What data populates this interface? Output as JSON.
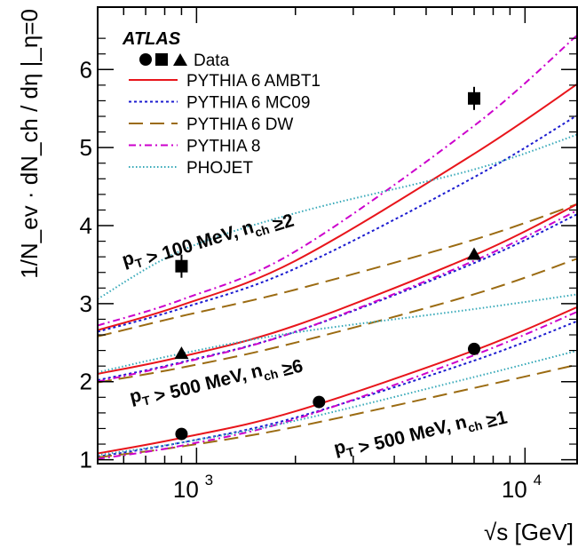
{
  "chart_data": {
    "type": "line",
    "title": "",
    "xlabel": "√s [GeV]",
    "ylabel": "1/N_ev · dN_ch / dη |_η=0",
    "xscale": "log",
    "xlim": [
      500,
      14500
    ],
    "ylim": [
      0.95,
      6.8
    ],
    "x_ticks": [
      1000,
      10000
    ],
    "x_tick_labels": [
      "10",
      "10"
    ],
    "x_tick_exponents": [
      "3",
      "4"
    ],
    "y_ticks": [
      1,
      2,
      3,
      4,
      5,
      6
    ],
    "y_tick_labels": [
      "1",
      "2",
      "3",
      "4",
      "5",
      "6"
    ],
    "grid": false,
    "legend_position": "top-left",
    "experiment_label": "ATLAS",
    "legend": {
      "data_label": "Data",
      "entries": [
        {
          "name": "PYTHIA 6 AMBT1",
          "color": "#e8151b",
          "dash": "solid"
        },
        {
          "name": "PYTHIA 6 MC09",
          "color": "#1c1cd0",
          "dash": "dotted"
        },
        {
          "name": "PYTHIA 6 DW",
          "color": "#9b6b12",
          "dash": "longdash"
        },
        {
          "name": "PYTHIA 8",
          "color": "#cc00cc",
          "dash": "dashdot"
        },
        {
          "name": "PHOJET",
          "color": "#35a8b8",
          "dash": "finedot"
        }
      ]
    },
    "annotations": {
      "high": {
        "pre": "p",
        "sub1": "T",
        "mid": " > 100 MeV, n",
        "sub2": "ch",
        "rel": "≥",
        "num": "2"
      },
      "mid": {
        "pre": "p",
        "sub1": "T",
        "mid": " > 500 MeV, n",
        "sub2": "ch",
        "rel": "≥",
        "num": "6"
      },
      "low": {
        "pre": "p",
        "sub1": "T",
        "mid": " > 500 MeV, n",
        "sub2": "ch",
        "rel": "≥",
        "num": "1"
      }
    },
    "data_points": [
      {
        "group": "pT>500MeV, nch>=1",
        "marker": "circle",
        "x": [
          900,
          2360,
          7000
        ],
        "y": [
          1.33,
          1.74,
          2.42
        ]
      },
      {
        "group": "pT>500MeV, nch>=6",
        "marker": "triangle",
        "x": [
          900,
          7000
        ],
        "y": [
          2.36,
          3.63
        ]
      },
      {
        "group": "pT>100MeV, nch>=2",
        "marker": "square",
        "x": [
          900,
          7000
        ],
        "y": [
          3.48,
          5.63
        ]
      }
    ],
    "series": [
      {
        "name": "PYTHIA 6 AMBT1",
        "group": "pT>100MeV, nch>=2",
        "x": [
          500,
          900,
          2000,
          7000,
          14500
        ],
        "y": [
          2.66,
          2.98,
          3.55,
          4.92,
          5.82
        ]
      },
      {
        "name": "PYTHIA 6 MC09",
        "group": "pT>100MeV, nch>=2",
        "x": [
          500,
          900,
          2000,
          7000,
          14500
        ],
        "y": [
          2.64,
          2.94,
          3.45,
          4.62,
          5.42
        ]
      },
      {
        "name": "PYTHIA 6 DW",
        "group": "pT>100MeV, nch>=2",
        "x": [
          500,
          900,
          2000,
          7000,
          14500
        ],
        "y": [
          2.58,
          2.84,
          3.18,
          3.82,
          4.28
        ]
      },
      {
        "name": "PYTHIA 8",
        "group": "pT>100MeV, nch>=2",
        "x": [
          500,
          900,
          2000,
          7000,
          14500
        ],
        "y": [
          2.72,
          3.05,
          3.67,
          5.28,
          6.45
        ]
      },
      {
        "name": "PHOJET",
        "group": "pT>100MeV, nch>=2",
        "x": [
          500,
          900,
          2000,
          7000,
          14500
        ],
        "y": [
          3.06,
          3.68,
          4.16,
          4.72,
          5.17
        ]
      },
      {
        "name": "PYTHIA 6 AMBT1",
        "group": "pT>500MeV, nch>=6",
        "x": [
          500,
          900,
          2000,
          7000,
          14500
        ],
        "y": [
          2.1,
          2.32,
          2.72,
          3.62,
          4.28
        ]
      },
      {
        "name": "PYTHIA 6 MC09",
        "group": "pT>500MeV, nch>=6",
        "x": [
          500,
          900,
          2000,
          7000,
          14500
        ],
        "y": [
          2.02,
          2.25,
          2.64,
          3.52,
          4.15
        ]
      },
      {
        "name": "PYTHIA 6 DW",
        "group": "pT>500MeV, nch>=6",
        "x": [
          500,
          900,
          2000,
          7000,
          14500
        ],
        "y": [
          1.99,
          2.18,
          2.5,
          3.12,
          3.58
        ]
      },
      {
        "name": "PYTHIA 8",
        "group": "pT>500MeV, nch>=6",
        "x": [
          500,
          900,
          2000,
          7000,
          14500
        ],
        "y": [
          2.0,
          2.24,
          2.64,
          3.55,
          4.2
        ]
      },
      {
        "name": "PHOJET",
        "group": "pT>500MeV, nch>=6",
        "x": [
          500,
          900,
          2000,
          7000,
          14500
        ],
        "y": [
          2.12,
          2.36,
          2.63,
          2.93,
          3.12
        ]
      },
      {
        "name": "PYTHIA 6 AMBT1",
        "group": "pT>500MeV, nch>=1",
        "x": [
          500,
          900,
          2000,
          7000,
          14500
        ],
        "y": [
          1.08,
          1.28,
          1.62,
          2.4,
          2.96
        ]
      },
      {
        "name": "PYTHIA 6 MC09",
        "group": "pT>500MeV, nch>=1",
        "x": [
          500,
          900,
          2000,
          7000,
          14500
        ],
        "y": [
          1.04,
          1.22,
          1.54,
          2.27,
          2.78
        ]
      },
      {
        "name": "PYTHIA 6 DW",
        "group": "pT>500MeV, nch>=1",
        "x": [
          500,
          900,
          2000,
          7000,
          14500
        ],
        "y": [
          1.03,
          1.17,
          1.42,
          1.92,
          2.22
        ]
      },
      {
        "name": "PYTHIA 8",
        "group": "pT>500MeV, nch>=1",
        "x": [
          500,
          900,
          2000,
          7000,
          14500
        ],
        "y": [
          1.01,
          1.18,
          1.52,
          2.34,
          2.9
        ]
      },
      {
        "name": "PHOJET",
        "group": "pT>500MeV, nch>=1",
        "x": [
          500,
          900,
          2000,
          7000,
          14500
        ],
        "y": [
          1.06,
          1.22,
          1.5,
          2.06,
          2.4
        ]
      }
    ]
  }
}
